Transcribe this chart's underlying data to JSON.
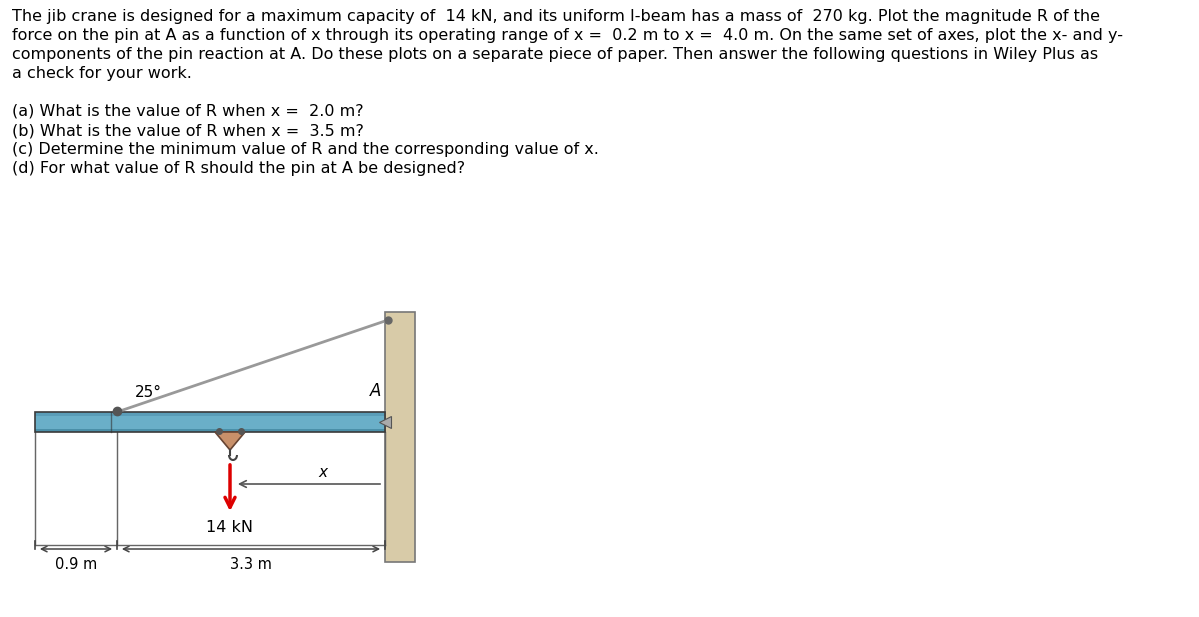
{
  "title_line1": "The jib crane is designed for a maximum capacity of  14 kN, and its uniform I-beam has a mass of  270 kg. Plot the magnitude R of the",
  "title_line2": "force on the pin at A as a function of x through its operating range of x =  0.2 m to x =  4.0 m. On the same set of axes, plot the x- and y-",
  "title_line3": "components of the pin reaction at A. Do these plots on a separate piece of paper. Then answer the following questions in Wiley Plus as",
  "title_line4": "a check for your work.",
  "qa_lines": [
    "(a) What is the value of R when x =  2.0 m?",
    "(b) What is the value of R when x =  3.5 m?",
    "(c) Determine the minimum value of R and the corresponding value of x.",
    "(d) For what value of R should the pin at A be designed?"
  ],
  "angle_label": "25°",
  "point_A_label": "A",
  "load_label": "14 kN",
  "dim_left": "0.9 m",
  "dim_right": "3.3 m",
  "x_label": "x",
  "background_color": "#ffffff",
  "beam_color": "#6aafc8",
  "beam_top_color": "#7abfd8",
  "beam_bottom_color": "#4a8fa8",
  "beam_border_color": "#3a3a3a",
  "wall_color": "#d8cba8",
  "wall_border_color": "#777777",
  "cable_color": "#999999",
  "load_arrow_color": "#dd0000",
  "dim_line_color": "#444444",
  "text_color": "#000000",
  "font_size_body": 11.5,
  "font_size_diagram": 11.0,
  "font_size_dim": 10.5
}
